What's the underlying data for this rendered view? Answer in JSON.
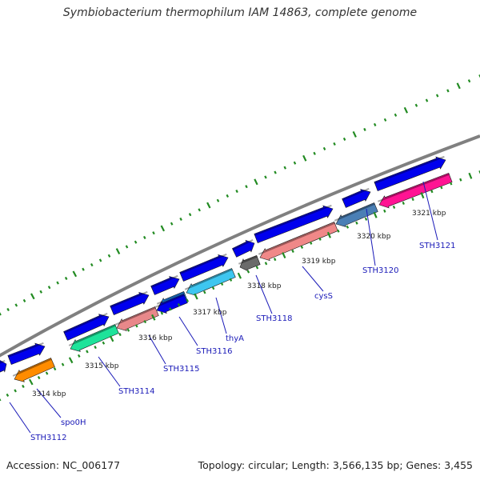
{
  "title": "Symbiobacterium thermophilum IAM 14863, complete genome",
  "footer": {
    "accession": "Accession: NC_006177",
    "topology": "Topology: circular; Length: 3,566,135 bp; Genes: 3,455"
  },
  "colors": {
    "backbone": "#808080",
    "tick": "#228b22",
    "forward_gene": "#0000ee",
    "label": "#1a1ab8"
  },
  "kbp_labels": [
    "3314 kbp",
    "3315 kbp",
    "3316 kbp",
    "3317 kbp",
    "3318 kbp",
    "3319 kbp",
    "3320 kbp",
    "3321 kbp"
  ],
  "gene_labels": [
    "STH3112",
    "spo0H",
    "STH3114",
    "STH3115",
    "STH3116",
    "thyA",
    "STH3118",
    "cysS",
    "STH3120",
    "STH3121"
  ],
  "reverse_gene_colors": [
    "#ff8c00",
    "#1ee39a",
    "#e8888a",
    "#1e90ff",
    "#3ec6f0",
    "#6b6b6b",
    "#f08888",
    "#4a7fb5",
    "#ff1493"
  ]
}
